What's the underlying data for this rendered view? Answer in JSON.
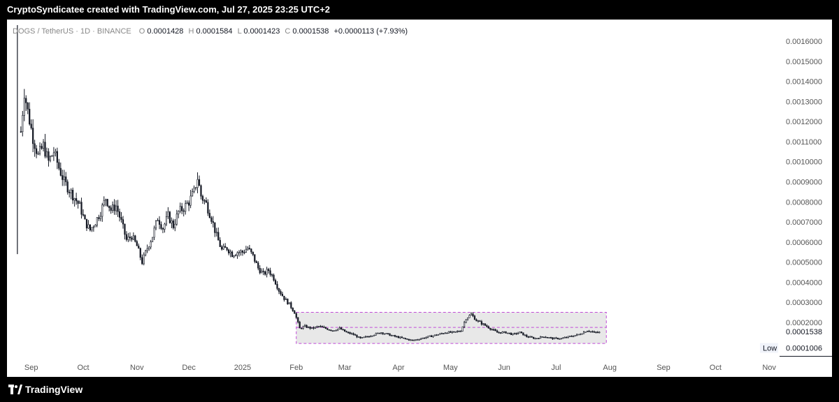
{
  "header": {
    "caption": "CryptoSyndicatee created with TradingView.com, Jul 27, 2025 23:25 UTC+2"
  },
  "footer": {
    "brand": "TradingView"
  },
  "colors": {
    "candle": "#131722",
    "range_fill": "#e8e8e8",
    "range_border": "#c04bd6",
    "axis_text": "#555555",
    "background": "#ffffff"
  },
  "chart_data": {
    "type": "candlestick",
    "symbol": {
      "name": "DOGS / TetherUS · 1D · BINANCE",
      "o_label": "O",
      "o_value": "0.0001428",
      "h_label": "H",
      "h_value": "0.0001584",
      "l_label": "L",
      "l_value": "0.0001423",
      "c_label": "C",
      "c_value": "0.0001538",
      "change": "+0.0000113 (+7.93%)"
    },
    "x_range": [
      "2024-08-18",
      "2025-11-07"
    ],
    "ylim": [
      4e-05,
      0.00168
    ],
    "y_ticks": [
      0.0016,
      0.0015,
      0.0014,
      0.0013,
      0.0012,
      0.0011,
      0.001,
      0.0009,
      0.0008,
      0.0007,
      0.0006,
      0.0005,
      0.0004,
      0.0003,
      0.0002
    ],
    "y_tick_labels": [
      "0.0016000",
      "0.0015000",
      "0.0014000",
      "0.0013000",
      "0.0012000",
      "0.0011000",
      "0.0010000",
      "0.0009000",
      "0.0008000",
      "0.0007000",
      "0.0006000",
      "0.0005000",
      "0.0004000",
      "0.0003000",
      "0.0002000"
    ],
    "x_ticks": [
      {
        "date": "2024-09-01",
        "label": "Sep"
      },
      {
        "date": "2024-10-01",
        "label": "Oct"
      },
      {
        "date": "2024-11-01",
        "label": "Nov"
      },
      {
        "date": "2024-12-01",
        "label": "Dec"
      },
      {
        "date": "2025-01-01",
        "label": "2025"
      },
      {
        "date": "2025-02-01",
        "label": "Feb"
      },
      {
        "date": "2025-03-01",
        "label": "Mar"
      },
      {
        "date": "2025-04-01",
        "label": "Apr"
      },
      {
        "date": "2025-05-01",
        "label": "May"
      },
      {
        "date": "2025-06-01",
        "label": "Jun"
      },
      {
        "date": "2025-07-01",
        "label": "Jul"
      },
      {
        "date": "2025-08-01",
        "label": "Aug"
      },
      {
        "date": "2025-09-01",
        "label": "Sep"
      },
      {
        "date": "2025-10-01",
        "label": "Oct"
      },
      {
        "date": "2025-11-01",
        "label": "Nov"
      }
    ],
    "close_series": [
      {
        "date": "2024-08-26",
        "close": 0.00115
      },
      {
        "date": "2024-08-28",
        "close": 0.00135
      },
      {
        "date": "2024-08-30",
        "close": 0.00125
      },
      {
        "date": "2024-09-02",
        "close": 0.00112
      },
      {
        "date": "2024-09-05",
        "close": 0.00103
      },
      {
        "date": "2024-09-08",
        "close": 0.00108
      },
      {
        "date": "2024-09-11",
        "close": 0.001
      },
      {
        "date": "2024-09-14",
        "close": 0.00105
      },
      {
        "date": "2024-09-17",
        "close": 0.00097
      },
      {
        "date": "2024-09-20",
        "close": 0.0009
      },
      {
        "date": "2024-09-23",
        "close": 0.00086
      },
      {
        "date": "2024-09-26",
        "close": 0.00082
      },
      {
        "date": "2024-09-29",
        "close": 0.00078
      },
      {
        "date": "2024-10-02",
        "close": 0.0007
      },
      {
        "date": "2024-10-05",
        "close": 0.00066
      },
      {
        "date": "2024-10-08",
        "close": 0.0007
      },
      {
        "date": "2024-10-11",
        "close": 0.00075
      },
      {
        "date": "2024-10-14",
        "close": 0.00082
      },
      {
        "date": "2024-10-17",
        "close": 0.00076
      },
      {
        "date": "2024-10-20",
        "close": 0.00078
      },
      {
        "date": "2024-10-23",
        "close": 0.0007
      },
      {
        "date": "2024-10-26",
        "close": 0.00061
      },
      {
        "date": "2024-10-29",
        "close": 0.00063
      },
      {
        "date": "2024-11-01",
        "close": 0.00058
      },
      {
        "date": "2024-11-04",
        "close": 0.0005
      },
      {
        "date": "2024-11-07",
        "close": 0.00057
      },
      {
        "date": "2024-11-10",
        "close": 0.00063
      },
      {
        "date": "2024-11-13",
        "close": 0.00072
      },
      {
        "date": "2024-11-16",
        "close": 0.00067
      },
      {
        "date": "2024-11-19",
        "close": 0.00073
      },
      {
        "date": "2024-11-22",
        "close": 0.00068
      },
      {
        "date": "2024-11-25",
        "close": 0.00075
      },
      {
        "date": "2024-11-28",
        "close": 0.00077
      },
      {
        "date": "2024-12-01",
        "close": 0.0008
      },
      {
        "date": "2024-12-04",
        "close": 0.00085
      },
      {
        "date": "2024-12-06",
        "close": 0.00092
      },
      {
        "date": "2024-12-08",
        "close": 0.00083
      },
      {
        "date": "2024-12-11",
        "close": 0.00079
      },
      {
        "date": "2024-12-14",
        "close": 0.00072
      },
      {
        "date": "2024-12-17",
        "close": 0.00063
      },
      {
        "date": "2024-12-20",
        "close": 0.00056
      },
      {
        "date": "2024-12-23",
        "close": 0.00057
      },
      {
        "date": "2024-12-26",
        "close": 0.00054
      },
      {
        "date": "2024-12-29",
        "close": 0.00055
      },
      {
        "date": "2025-01-01",
        "close": 0.00055
      },
      {
        "date": "2025-01-04",
        "close": 0.00057
      },
      {
        "date": "2025-01-07",
        "close": 0.00053
      },
      {
        "date": "2025-01-10",
        "close": 0.00047
      },
      {
        "date": "2025-01-13",
        "close": 0.00044
      },
      {
        "date": "2025-01-16",
        "close": 0.00046
      },
      {
        "date": "2025-01-19",
        "close": 0.00042
      },
      {
        "date": "2025-01-22",
        "close": 0.00036
      },
      {
        "date": "2025-01-25",
        "close": 0.00032
      },
      {
        "date": "2025-01-28",
        "close": 0.00029
      },
      {
        "date": "2025-01-31",
        "close": 0.00025
      },
      {
        "date": "2025-02-03",
        "close": 0.00017
      },
      {
        "date": "2025-02-06",
        "close": 0.00018
      },
      {
        "date": "2025-02-10",
        "close": 0.00017
      },
      {
        "date": "2025-02-14",
        "close": 0.00018
      },
      {
        "date": "2025-02-18",
        "close": 0.00017
      },
      {
        "date": "2025-02-22",
        "close": 0.00016
      },
      {
        "date": "2025-02-26",
        "close": 0.00017
      },
      {
        "date": "2025-03-02",
        "close": 0.00015
      },
      {
        "date": "2025-03-06",
        "close": 0.00014
      },
      {
        "date": "2025-03-10",
        "close": 0.00012
      },
      {
        "date": "2025-03-14",
        "close": 0.00013
      },
      {
        "date": "2025-03-18",
        "close": 0.00014
      },
      {
        "date": "2025-03-22",
        "close": 0.00015
      },
      {
        "date": "2025-03-26",
        "close": 0.00014
      },
      {
        "date": "2025-03-30",
        "close": 0.00013
      },
      {
        "date": "2025-04-04",
        "close": 0.00012
      },
      {
        "date": "2025-04-09",
        "close": 0.00011
      },
      {
        "date": "2025-04-14",
        "close": 0.00012
      },
      {
        "date": "2025-04-19",
        "close": 0.00013
      },
      {
        "date": "2025-04-24",
        "close": 0.00014
      },
      {
        "date": "2025-04-28",
        "close": 0.00015
      },
      {
        "date": "2025-05-03",
        "close": 0.00015
      },
      {
        "date": "2025-05-07",
        "close": 0.00016
      },
      {
        "date": "2025-05-10",
        "close": 0.00022
      },
      {
        "date": "2025-05-13",
        "close": 0.00024
      },
      {
        "date": "2025-05-16",
        "close": 0.00021
      },
      {
        "date": "2025-05-20",
        "close": 0.00019
      },
      {
        "date": "2025-05-24",
        "close": 0.00017
      },
      {
        "date": "2025-05-28",
        "close": 0.00015
      },
      {
        "date": "2025-06-02",
        "close": 0.00015
      },
      {
        "date": "2025-06-06",
        "close": 0.00014
      },
      {
        "date": "2025-06-10",
        "close": 0.00015
      },
      {
        "date": "2025-06-14",
        "close": 0.00013
      },
      {
        "date": "2025-06-19",
        "close": 0.00012
      },
      {
        "date": "2025-06-24",
        "close": 0.00013
      },
      {
        "date": "2025-06-29",
        "close": 0.00012
      },
      {
        "date": "2025-07-04",
        "close": 0.00012
      },
      {
        "date": "2025-07-09",
        "close": 0.00013
      },
      {
        "date": "2025-07-14",
        "close": 0.00014
      },
      {
        "date": "2025-07-19",
        "close": 0.00016
      },
      {
        "date": "2025-07-23",
        "close": 0.00015
      },
      {
        "date": "2025-07-27",
        "close": 0.00015
      }
    ],
    "spike_wick": {
      "date": "2024-08-24",
      "high": 0.00168,
      "low": 0.00054
    },
    "range_box": {
      "x0": "2025-02-01",
      "x1": "2025-07-30",
      "y0": 9.5e-05,
      "y1": 0.00025
    },
    "range_midline": 0.000175,
    "last_price": {
      "value": 0.0001538,
      "label": "0.0001538"
    },
    "low_marker": {
      "label": "Low",
      "value": 0.0001006,
      "value_label": "0.0001006"
    }
  }
}
